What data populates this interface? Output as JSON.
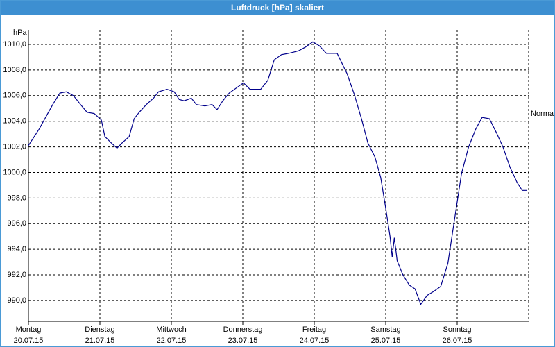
{
  "chart_data": {
    "type": "line",
    "title": "Luftdruck [hPa] skaliert",
    "y_unit": "hPa",
    "annotation": "Normal",
    "color": "#00008b",
    "grid": true,
    "xlim": [
      0,
      7
    ],
    "xticks": [
      {
        "value": 0,
        "label": "Montag"
      },
      {
        "value": 1,
        "label": "Dienstag"
      },
      {
        "value": 2,
        "label": "Mittwoch"
      },
      {
        "value": 3,
        "label": "Donnerstag"
      },
      {
        "value": 4,
        "label": "Freitag"
      },
      {
        "value": 5,
        "label": "Samstag"
      },
      {
        "value": 6,
        "label": "Sonntag"
      }
    ],
    "xtick_dates": [
      "20.07.15",
      "21.07.15",
      "22.07.15",
      "23.07.15",
      "24.07.15",
      "25.07.15",
      "26.07.15"
    ],
    "ylim": [
      988.37,
      1011.14
    ],
    "yticks": [
      {
        "value": 990,
        "label": "990,0"
      },
      {
        "value": 992,
        "label": "992,0"
      },
      {
        "value": 994,
        "label": "994,0"
      },
      {
        "value": 996,
        "label": "996,0"
      },
      {
        "value": 998,
        "label": "998,0"
      },
      {
        "value": 1000,
        "label": "1000,0"
      },
      {
        "value": 1002,
        "label": "1002,0"
      },
      {
        "value": 1004,
        "label": "1004,0"
      },
      {
        "value": 1006,
        "label": "1006,0"
      },
      {
        "value": 1008,
        "label": "1008,0"
      },
      {
        "value": 1010,
        "label": "1010,0"
      }
    ],
    "x": [
      0,
      0.15,
      0.24,
      0.34,
      0.44,
      0.53,
      0.63,
      0.73,
      0.82,
      0.92,
      1.02,
      1.07,
      1.16,
      1.24,
      1.31,
      1.41,
      1.48,
      1.55,
      1.65,
      1.75,
      1.82,
      1.94,
      2.04,
      2.11,
      2.18,
      2.28,
      2.35,
      2.47,
      2.57,
      2.64,
      2.72,
      2.81,
      2.91,
      3.01,
      3.1,
      3.25,
      3.35,
      3.44,
      3.54,
      3.64,
      3.78,
      3.88,
      3.98,
      4.07,
      4.17,
      4.32,
      4.46,
      4.56,
      4.66,
      4.75,
      4.85,
      4.93,
      5.0,
      5.06,
      5.09,
      5.12,
      5.16,
      5.24,
      5.33,
      5.41,
      5.49,
      5.58,
      5.67,
      5.77,
      5.87,
      5.97,
      6.06,
      6.16,
      6.26,
      6.35,
      6.45,
      6.55,
      6.64,
      6.74,
      6.84,
      6.91,
      6.98
    ],
    "values": [
      1002.1,
      1003.4,
      1004.3,
      1005.3,
      1006.2,
      1006.3,
      1006.0,
      1005.3,
      1004.7,
      1004.6,
      1004.1,
      1002.8,
      1002.3,
      1001.9,
      1002.3,
      1002.8,
      1004.2,
      1004.7,
      1005.3,
      1005.8,
      1006.3,
      1006.5,
      1006.3,
      1005.7,
      1005.6,
      1005.8,
      1005.3,
      1005.2,
      1005.3,
      1004.9,
      1005.6,
      1006.2,
      1006.6,
      1007.0,
      1006.5,
      1006.5,
      1007.2,
      1008.8,
      1009.2,
      1009.3,
      1009.5,
      1009.8,
      1010.2,
      1009.9,
      1009.3,
      1009.3,
      1007.7,
      1006.1,
      1004.2,
      1002.3,
      1001.2,
      999.6,
      997.2,
      995.0,
      993.4,
      994.9,
      993.1,
      992.0,
      991.2,
      990.9,
      989.7,
      990.4,
      990.7,
      991.1,
      992.9,
      996.6,
      999.9,
      1002.0,
      1003.4,
      1004.3,
      1004.2,
      1003.1,
      1002.0,
      1000.4,
      999.2,
      998.6,
      998.6
    ]
  }
}
